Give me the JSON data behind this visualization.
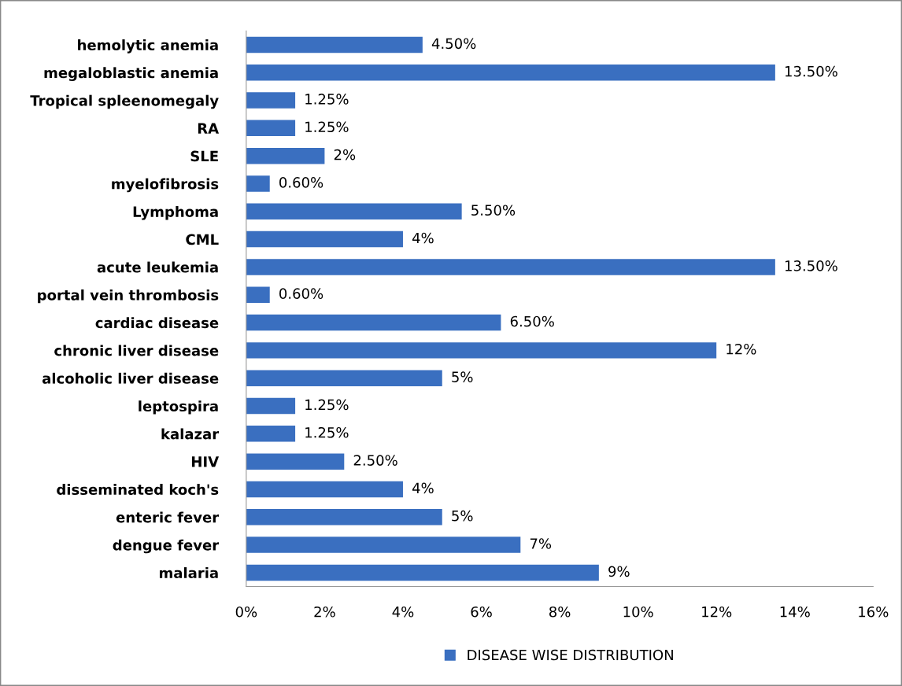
{
  "chart_data": {
    "type": "bar",
    "orientation": "horizontal",
    "categories": [
      "hemolytic anemia",
      "megaloblastic anemia",
      "Tropical spleenomegaly",
      "RA",
      "SLE",
      "myelofibrosis",
      "Lymphoma",
      "CML",
      "acute leukemia",
      "portal vein thrombosis",
      "cardiac disease",
      "chronic liver disease",
      "alcoholic liver disease",
      "leptospira",
      "kalazar",
      "HIV",
      "disseminated koch's",
      "enteric fever",
      "dengue fever",
      "malaria"
    ],
    "series": [
      {
        "name": "DISEASE WISE DISTRIBUTION",
        "color": "#3a6fc0",
        "values": [
          4.5,
          13.5,
          1.25,
          1.25,
          2,
          0.6,
          5.5,
          4,
          13.5,
          0.6,
          6.5,
          12,
          5,
          1.25,
          1.25,
          2.5,
          4,
          5,
          7,
          9
        ],
        "value_labels": [
          "4.50%",
          "13.50%",
          "1.25%",
          "1.25%",
          "2%",
          "0.60%",
          "5.50%",
          "4%",
          "13.50%",
          "0.60%",
          "6.50%",
          "12%",
          "5%",
          "1.25%",
          "1.25%",
          "2.50%",
          "4%",
          "5%",
          "7%",
          "9%"
        ]
      }
    ],
    "xlim": [
      0,
      16
    ],
    "xticks": [
      {
        "value": 0,
        "label": "0%"
      },
      {
        "value": 2,
        "label": "2%"
      },
      {
        "value": 4,
        "label": "4%"
      },
      {
        "value": 6,
        "label": "6%"
      },
      {
        "value": 8,
        "label": "8%"
      },
      {
        "value": 10,
        "label": "10%"
      },
      {
        "value": 12,
        "label": "12%"
      },
      {
        "value": 14,
        "label": "14%"
      },
      {
        "value": 16,
        "label": "16%"
      }
    ],
    "grid": false,
    "legend": "bottom"
  }
}
